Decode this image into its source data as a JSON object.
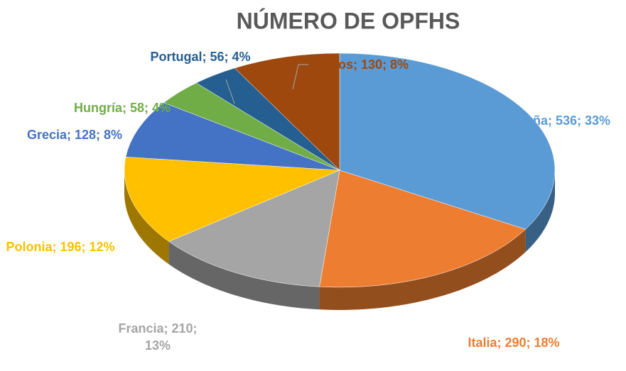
{
  "chart_data": {
    "type": "pie3d",
    "title": "NÚMERO DE OPFHS",
    "categories": [
      "España",
      "Italia",
      "Francia",
      "Polonia",
      "Grecia",
      "Hungría",
      "Portugal",
      "Otros"
    ],
    "values": [
      536,
      290,
      210,
      196,
      128,
      58,
      56,
      130
    ],
    "value_labels": [
      "España; 536; 33%",
      "Italia; 290; 18%",
      "Francia; 210; 13%",
      "Polonia; 196; 12%",
      "Grecia; 128; 8%",
      "Hungría; 58; 4%",
      "Portugal; 56; 4%",
      "Otros; 130; 8%"
    ],
    "colors": [
      "#5b9bd5",
      "#ed7d31",
      "#a5a5a5",
      "#ffc000",
      "#4472c4",
      "#70ad47",
      "#255e91",
      "#9e480e"
    ]
  }
}
